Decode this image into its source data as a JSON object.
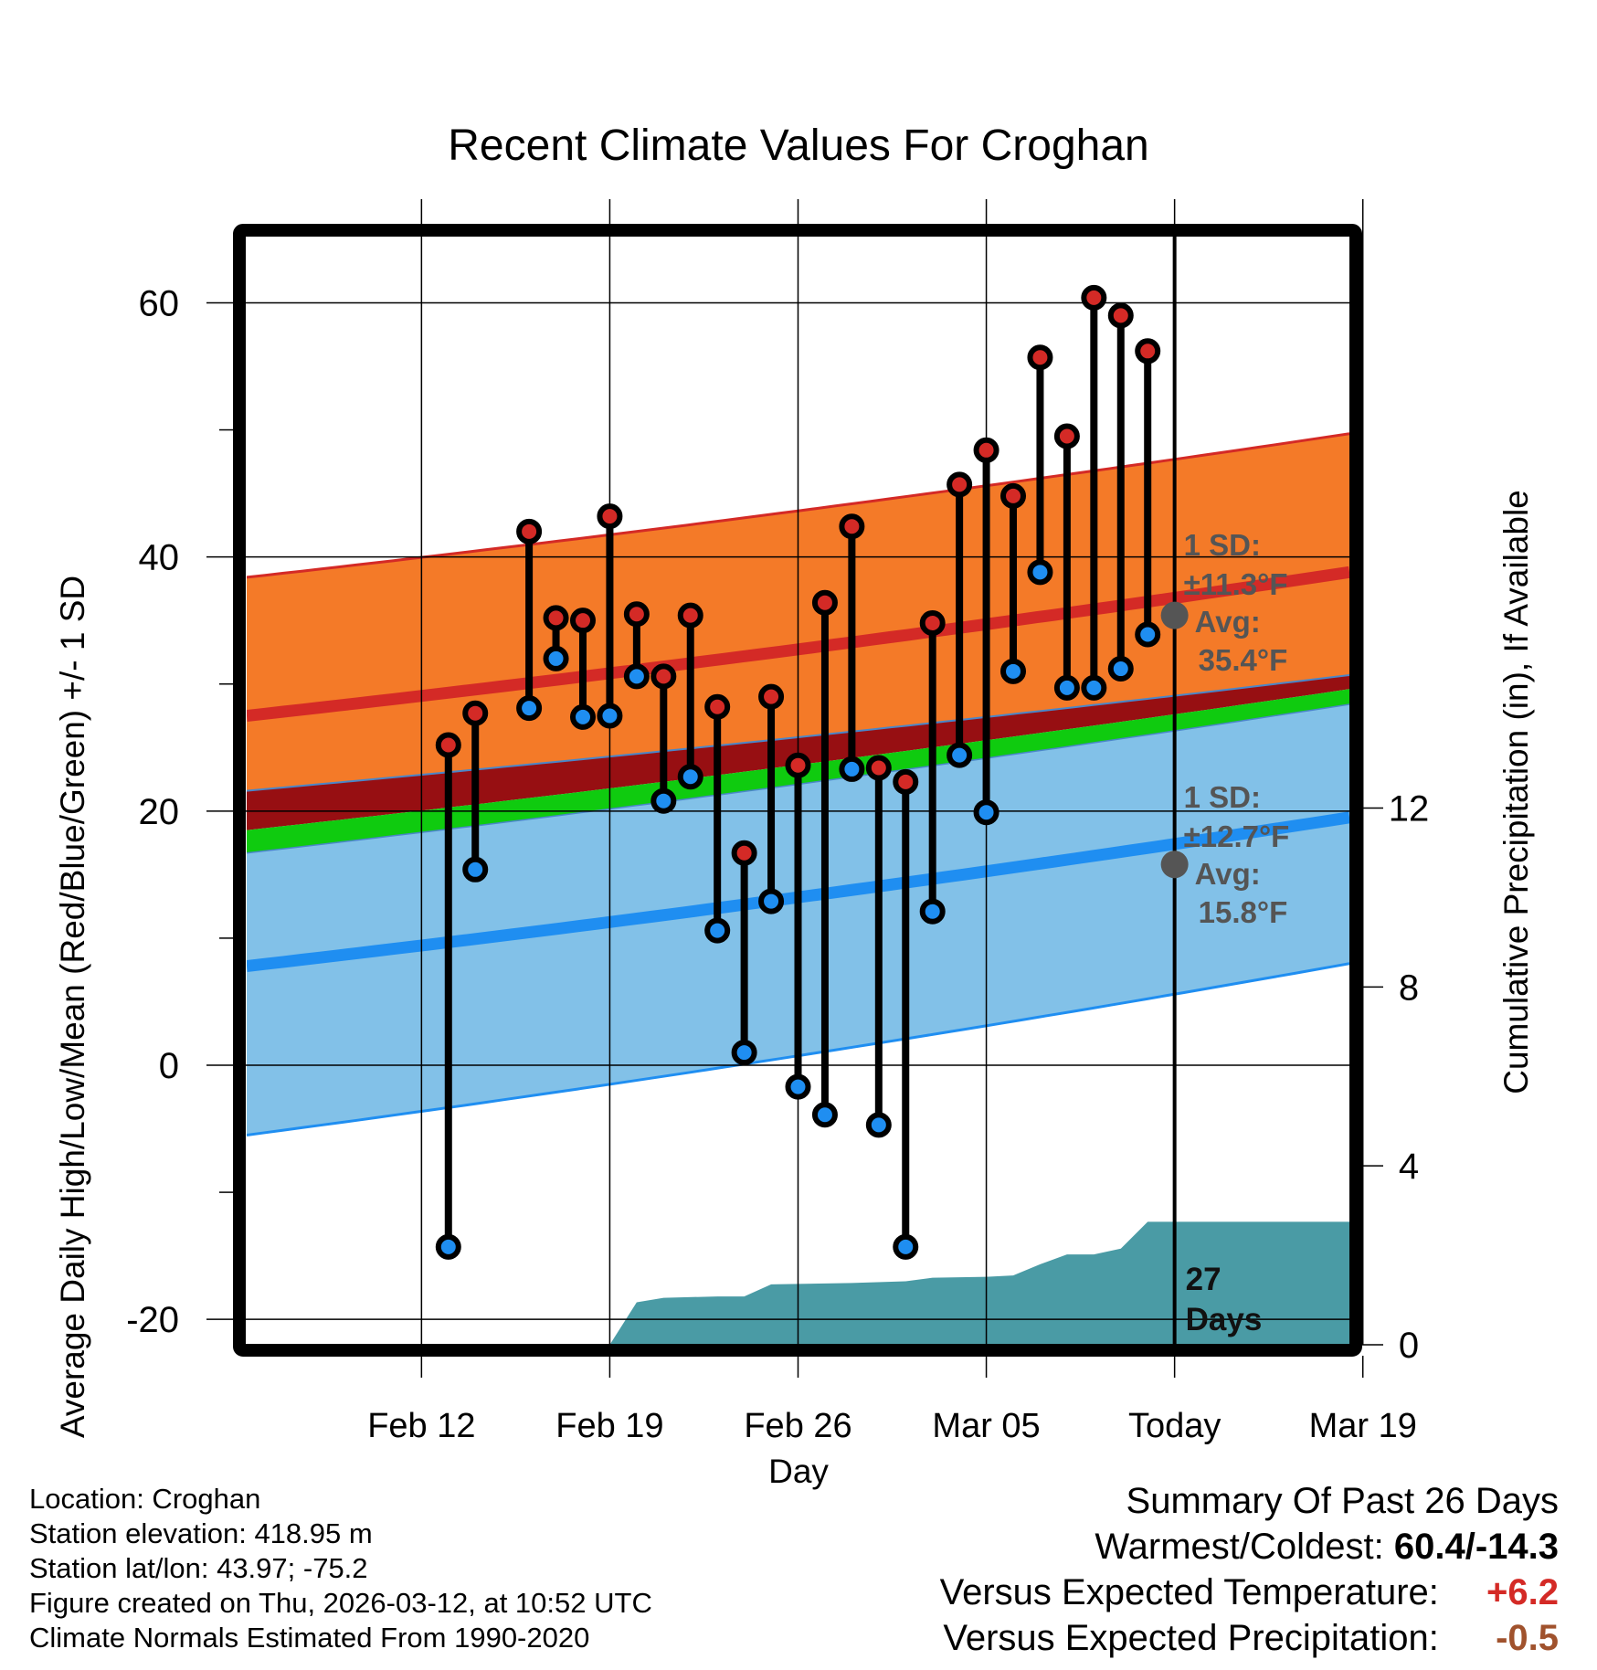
{
  "chart_data": {
    "type": "line",
    "title": "Recent Climate Values For Croghan",
    "xlabel": "Day",
    "ylabel_left": "Average Daily High/Low/Mean (Red/Blue/Green) +/- 1 SD",
    "ylabel_right": "Cumulative Precipitation (in), If Available",
    "ylim_left": [
      -22,
      66
    ],
    "yticks_left": [
      -20,
      0,
      20,
      40,
      60
    ],
    "ylim_right": [
      0,
      25
    ],
    "yticks_right": [
      0,
      4,
      8,
      12
    ],
    "xlim_days": [
      -34.5,
      6.5
    ],
    "xticks": [
      {
        "day": -28,
        "label": "Feb 12"
      },
      {
        "day": -21,
        "label": "Feb 19"
      },
      {
        "day": -14,
        "label": "Feb 26"
      },
      {
        "day": -7,
        "label": "Mar 05"
      },
      {
        "day": 0,
        "label": "Today"
      },
      {
        "day": 7,
        "label": "Mar 19"
      }
    ],
    "high_obs": [
      {
        "day": -27,
        "high": 25.2,
        "low": -14.3
      },
      {
        "day": -26,
        "high": 27.7,
        "low": 15.4
      },
      {
        "day": -24,
        "high": 42.0,
        "low": 28.1
      },
      {
        "day": -23,
        "high": 35.2,
        "low": 32.0
      },
      {
        "day": -22,
        "high": 35.0,
        "low": 27.4
      },
      {
        "day": -21,
        "high": 43.2,
        "low": 27.5
      },
      {
        "day": -20,
        "high": 35.5,
        "low": 30.6
      },
      {
        "day": -19,
        "high": 30.6,
        "low": 20.8
      },
      {
        "day": -18,
        "high": 35.4,
        "low": 22.7
      },
      {
        "day": -17,
        "high": 28.2,
        "low": 10.6
      },
      {
        "day": -16,
        "high": 16.7,
        "low": 1.0
      },
      {
        "day": -15,
        "high": 29.0,
        "low": 12.9
      },
      {
        "day": -14,
        "high": 23.6,
        "low": -1.7
      },
      {
        "day": -13,
        "high": 36.4,
        "low": -3.9
      },
      {
        "day": -12,
        "high": 42.4,
        "low": 23.3
      },
      {
        "day": -11,
        "high": 23.4,
        "low": -4.7
      },
      {
        "day": -10,
        "high": 22.3,
        "low": -14.3
      },
      {
        "day": -9,
        "high": 34.8,
        "low": 12.1
      },
      {
        "day": -8,
        "high": 45.7,
        "low": 24.4
      },
      {
        "day": -7,
        "high": 48.4,
        "low": 19.9
      },
      {
        "day": -6,
        "high": 44.8,
        "low": 31.0
      },
      {
        "day": -5,
        "high": 55.7,
        "low": 38.8
      },
      {
        "day": -4,
        "high": 49.5,
        "low": 29.7
      },
      {
        "day": -3,
        "high": 60.4,
        "low": 29.7
      },
      {
        "day": -2,
        "high": 59.0,
        "low": 31.2
      },
      {
        "day": -1,
        "high": 56.2,
        "low": 33.9
      }
    ],
    "normal_high": {
      "start_day": -34.5,
      "end_day": 6.5,
      "avg": [
        27.5,
        38.8
      ],
      "upper": [
        38.4,
        49.7
      ],
      "lower": [
        21.6,
        30.7
      ],
      "color": "#f47a28",
      "line_color": "#d42a26"
    },
    "normal_low": {
      "start_day": -34.5,
      "end_day": 6.5,
      "avg": [
        7.8,
        19.5
      ],
      "upper": [
        16.7,
        28.4
      ],
      "lower": [
        -5.5,
        8.0
      ],
      "color": "#82c1e8",
      "line_color": "#1f8ef1"
    },
    "normal_mean": {
      "upper": [
        18.5,
        29.6
      ],
      "lower": [
        16.7,
        28.4
      ],
      "color": "#0fcb0f"
    },
    "overlap_color": "#970f12",
    "precip": [
      {
        "day": -21,
        "value": 0.0
      },
      {
        "day": -20,
        "value": 0.95
      },
      {
        "day": -19,
        "value": 1.05
      },
      {
        "day": -17,
        "value": 1.08
      },
      {
        "day": -16,
        "value": 1.08
      },
      {
        "day": -15,
        "value": 1.35
      },
      {
        "day": -12,
        "value": 1.38
      },
      {
        "day": -10,
        "value": 1.42
      },
      {
        "day": -9,
        "value": 1.5
      },
      {
        "day": -7,
        "value": 1.52
      },
      {
        "day": -6,
        "value": 1.55
      },
      {
        "day": -5,
        "value": 1.8
      },
      {
        "day": -4,
        "value": 2.02
      },
      {
        "day": -3,
        "value": 2.02
      },
      {
        "day": -2,
        "value": 2.15
      },
      {
        "day": -1,
        "value": 2.75
      },
      {
        "day": 6.5,
        "value": 2.75
      }
    ],
    "precip_color": "#4a9ba5",
    "today_high_marker": 35.4,
    "today_low_marker": 15.8,
    "annotations": {
      "high_sd_label": "1 SD:",
      "high_sd_value": "±11.3°F",
      "high_avg_label": "Avg:",
      "high_avg_value": "35.4°F",
      "low_sd_label": "1 SD:",
      "low_sd_value": "±12.7°F",
      "low_avg_label": "Avg:",
      "low_avg_value": "15.8°F",
      "days_number": "27",
      "days_word": "Days"
    }
  },
  "footer": {
    "location": "Location: Croghan",
    "elevation": "Station elevation: 418.95 m",
    "latlon": "Station lat/lon: 43.97; -75.2",
    "created": "Figure created on Thu, 2026-03-12, at 10:52 UTC",
    "normals": "Climate Normals Estimated From 1990-2020"
  },
  "summary": {
    "heading": "Summary Of Past 26 Days",
    "warm_cold_label": "Warmest/Coldest:",
    "warm_cold_value": "60.4/-14.3",
    "temp_label": "Versus Expected Temperature:",
    "temp_value": "+6.2",
    "temp_color": "#d42a26",
    "precip_label": "Versus Expected Precipitation:",
    "precip_value": "-0.5",
    "precip_color": "#a0522d"
  }
}
